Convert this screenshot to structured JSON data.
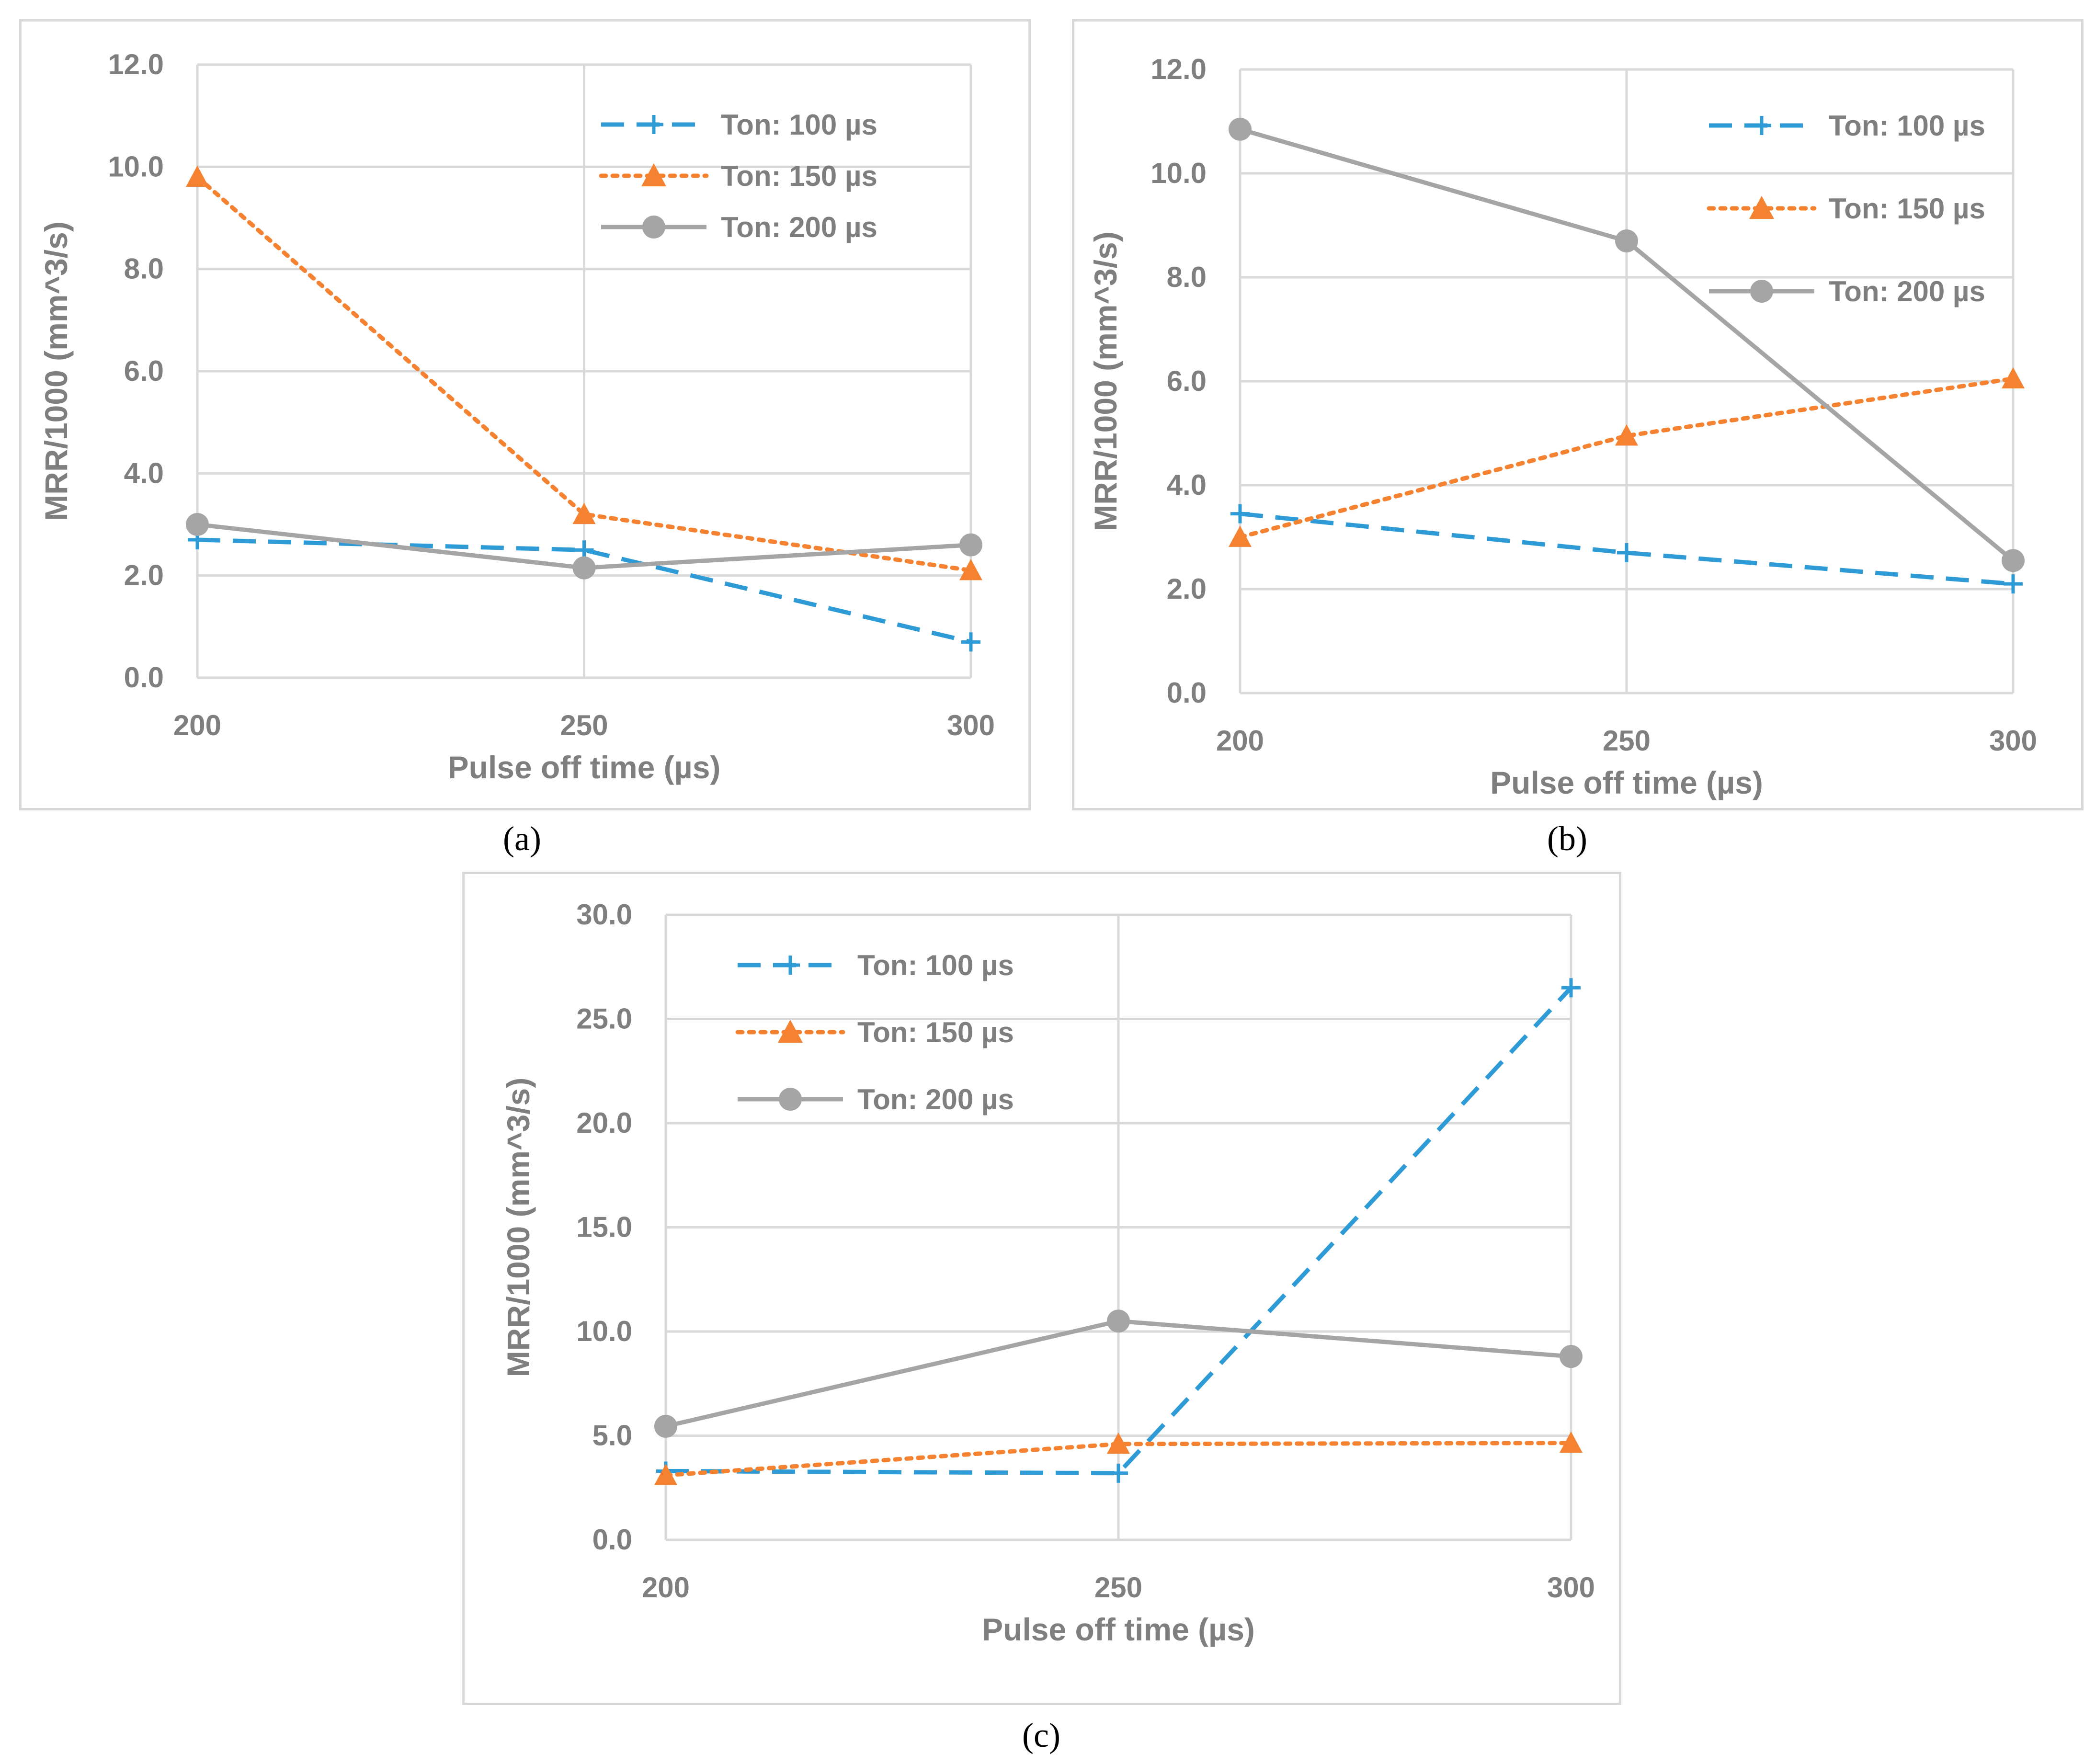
{
  "captions": [
    "(a)",
    "(b)",
    "(c)"
  ],
  "colors": {
    "series100": "#2e9bd6",
    "series150": "#f58231",
    "series200": "#a5a5a5",
    "grid": "#d9d9d9",
    "text": "#7f7f7f"
  },
  "chart_data": [
    {
      "type": "line",
      "caption": "(a)",
      "xlabel": "Pulse off time (µs)",
      "ylabel": "MRR/1000 (mm^3/s)",
      "x": [
        200,
        250,
        300
      ],
      "x_tick_labels": [
        "200",
        "250",
        "300"
      ],
      "ylim": [
        0,
        12
      ],
      "y_ticks": [
        0,
        2,
        4,
        6,
        8,
        10,
        12
      ],
      "y_tick_labels": [
        "0.0",
        "2.0",
        "4.0",
        "6.0",
        "8.0",
        "10.0",
        "12.0"
      ],
      "legend_position": "top-right",
      "grid": true,
      "series": [
        {
          "name": "Ton: 100 µs",
          "values": [
            2.7,
            2.5,
            0.7
          ],
          "style": "dashed",
          "marker": "plus"
        },
        {
          "name": "Ton: 150 µs",
          "values": [
            9.8,
            3.2,
            2.1
          ],
          "style": "dotted",
          "marker": "triangle"
        },
        {
          "name": "Ton: 200 µs",
          "values": [
            3.0,
            2.15,
            2.6
          ],
          "style": "solid",
          "marker": "circle"
        }
      ]
    },
    {
      "type": "line",
      "caption": "(b)",
      "xlabel": "Pulse off time (µs)",
      "ylabel": "MRR/1000 (mm^3/s)",
      "x": [
        200,
        250,
        300
      ],
      "x_tick_labels": [
        "200",
        "250",
        "300"
      ],
      "ylim": [
        0,
        12
      ],
      "y_ticks": [
        0,
        2,
        4,
        6,
        8,
        10,
        12
      ],
      "y_tick_labels": [
        "0.0",
        "2.0",
        "4.0",
        "6.0",
        "8.0",
        "10.0",
        "12.0"
      ],
      "legend_position": "top-right",
      "grid": true,
      "series": [
        {
          "name": "Ton: 100 µs",
          "values": [
            3.45,
            2.7,
            2.1
          ],
          "style": "dashed",
          "marker": "plus"
        },
        {
          "name": "Ton: 150 µs",
          "values": [
            3.0,
            4.95,
            6.05
          ],
          "style": "dotted",
          "marker": "triangle"
        },
        {
          "name": "Ton: 200 µs",
          "values": [
            10.85,
            8.7,
            2.55
          ],
          "style": "solid",
          "marker": "circle"
        }
      ]
    },
    {
      "type": "line",
      "caption": "(c)",
      "xlabel": "Pulse off time (µs)",
      "ylabel": "MRR/1000 (mm^3/s)",
      "x": [
        200,
        250,
        300
      ],
      "x_tick_labels": [
        "200",
        "250",
        "300"
      ],
      "ylim": [
        0,
        30
      ],
      "y_ticks": [
        0,
        5,
        10,
        15,
        20,
        25,
        30
      ],
      "y_tick_labels": [
        "0.0",
        "5.0",
        "10.0",
        "15.0",
        "20.0",
        "25.0",
        "30.0"
      ],
      "legend_position": "top-left",
      "grid": true,
      "series": [
        {
          "name": "Ton: 100 µs",
          "values": [
            3.3,
            3.2,
            26.5
          ],
          "style": "dashed",
          "marker": "plus"
        },
        {
          "name": "Ton: 150 µs",
          "values": [
            3.1,
            4.6,
            4.65
          ],
          "style": "dotted",
          "marker": "triangle"
        },
        {
          "name": "Ton: 200 µs",
          "values": [
            5.45,
            10.5,
            8.8
          ],
          "style": "solid",
          "marker": "circle"
        }
      ]
    }
  ]
}
